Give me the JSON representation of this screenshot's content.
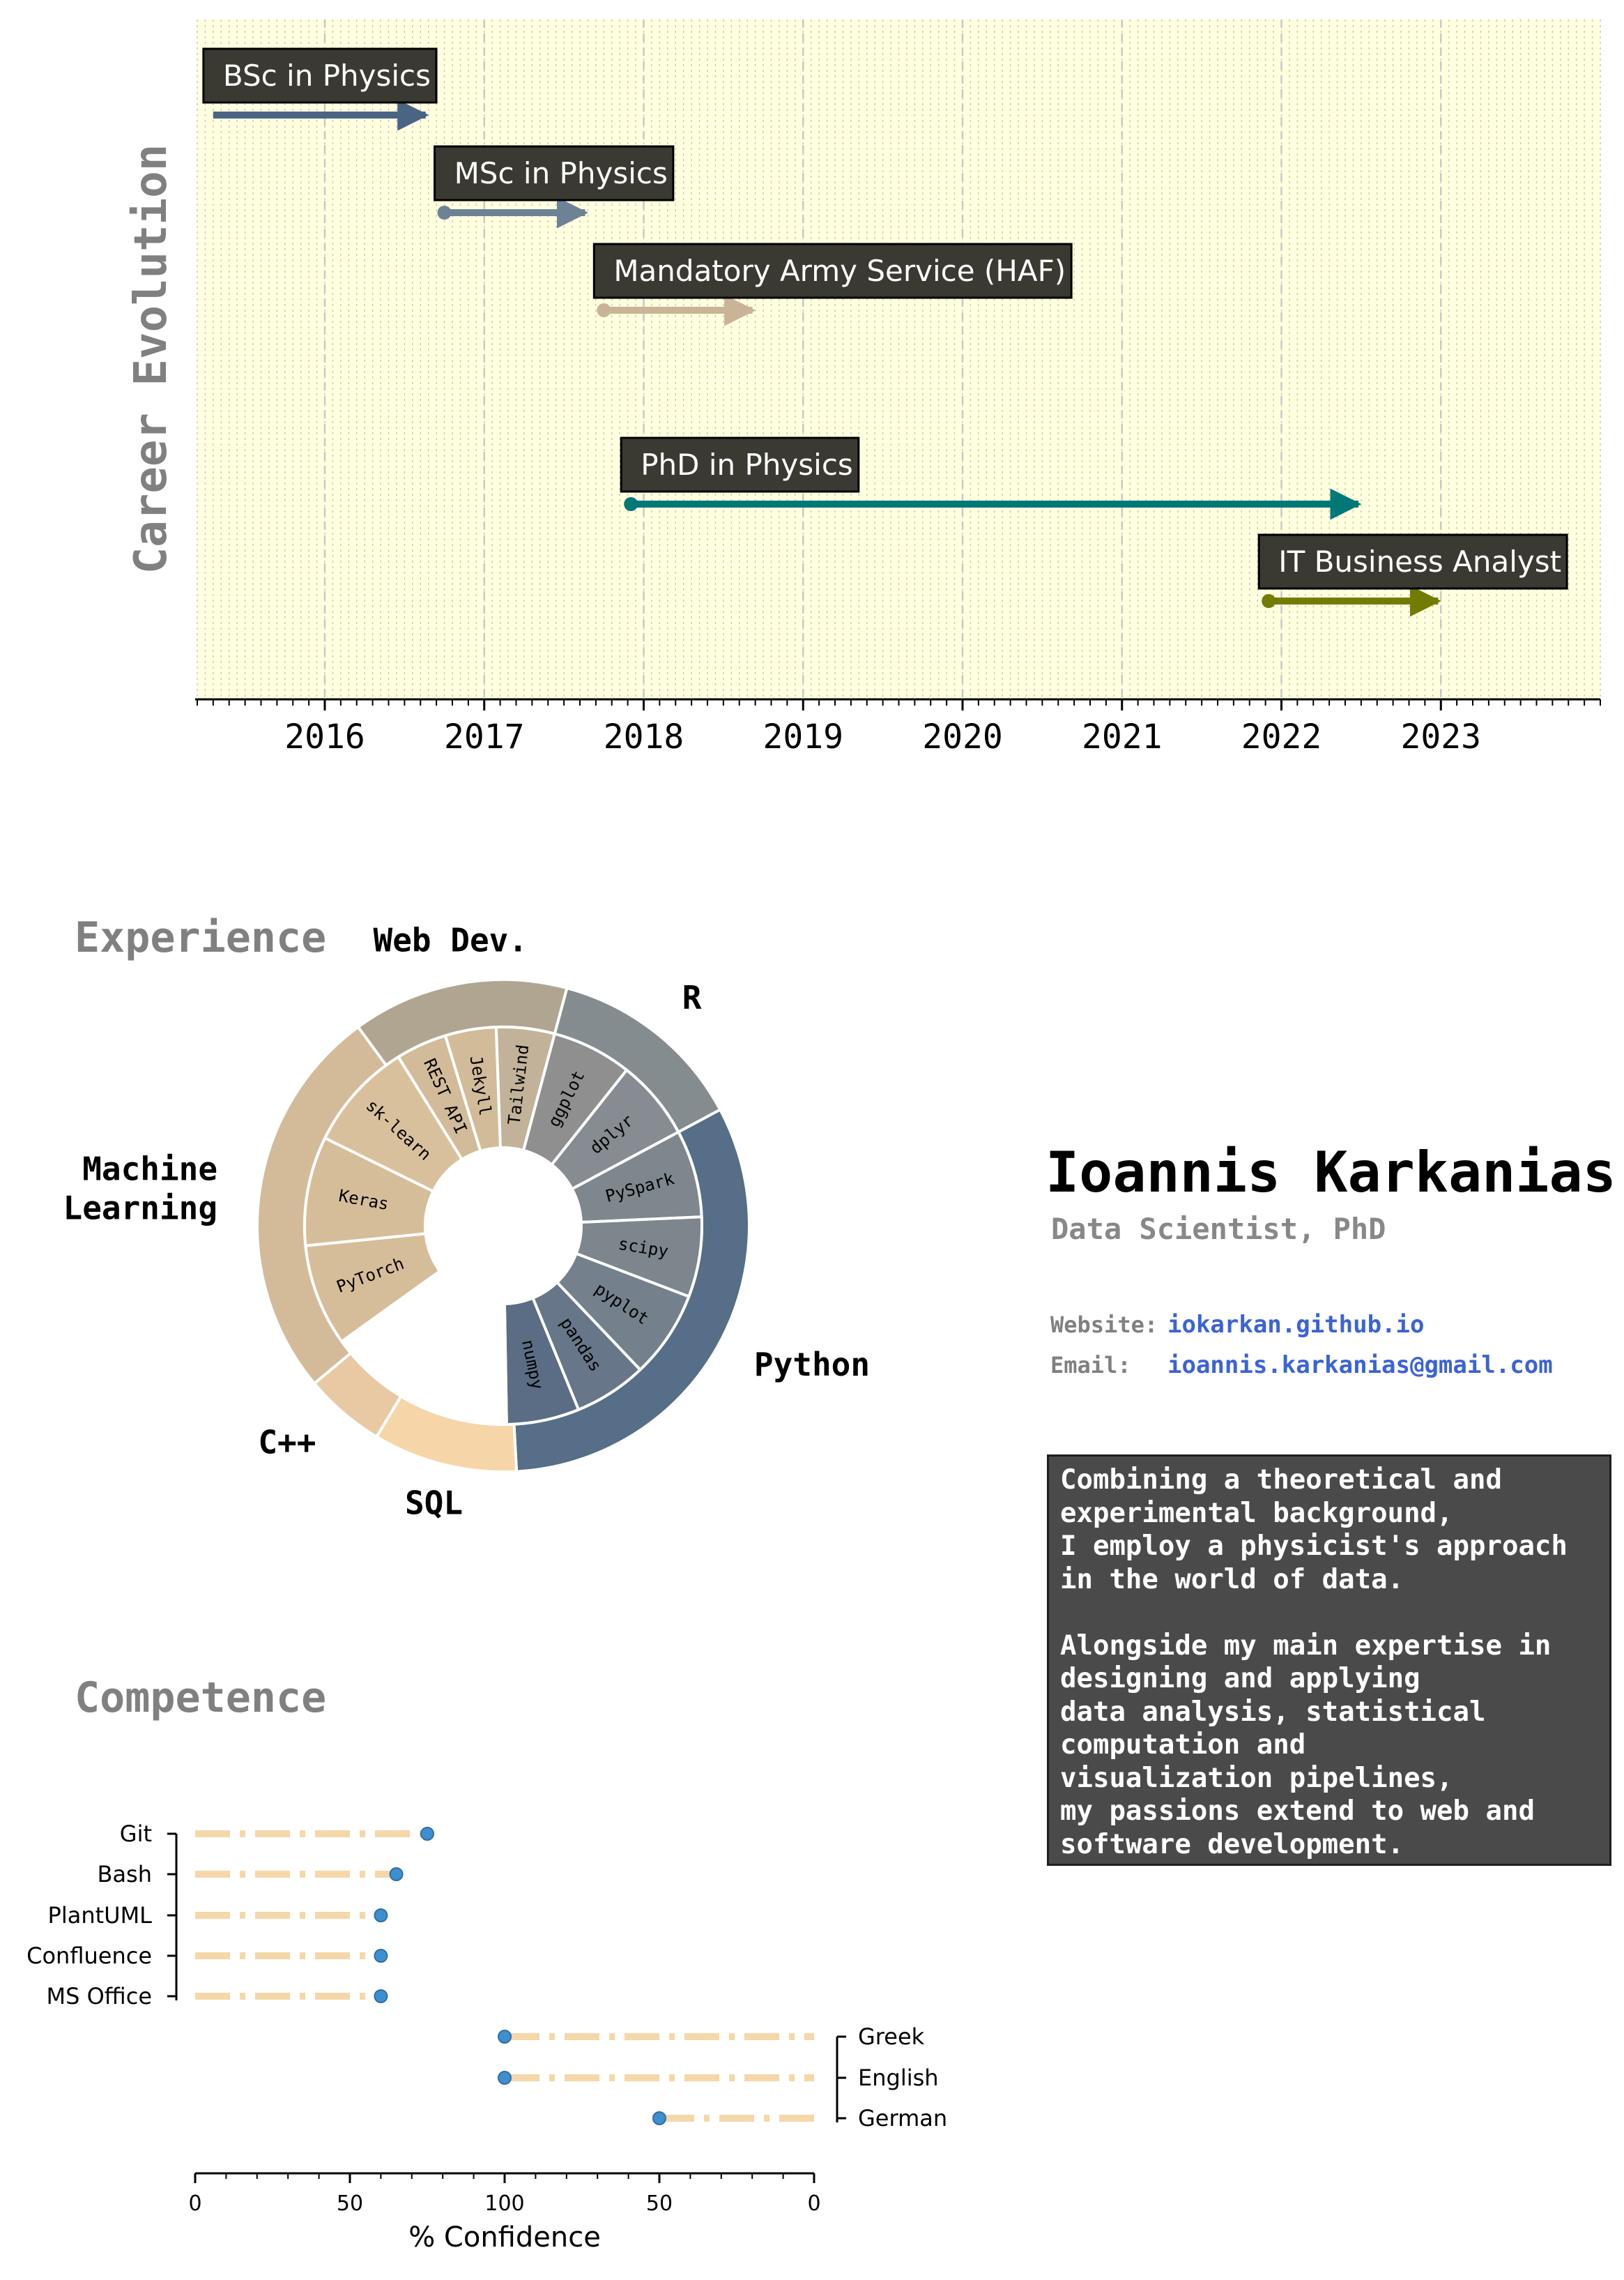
{
  "timeline": {
    "ylabel": "Career Evolution",
    "xlim": [
      2015.2,
      2024.0
    ],
    "ticks": [
      "2016",
      "2017",
      "2018",
      "2019",
      "2020",
      "2021",
      "2022",
      "2023"
    ],
    "events": [
      {
        "label": "BSc in Physics",
        "start": 2015.3,
        "end": 2016.65,
        "color": "#4a6483"
      },
      {
        "label": "MSc in Physics",
        "start": 2016.75,
        "end": 2017.65,
        "color": "#6e8296"
      },
      {
        "label": "Mandatory Army Service (HAF)",
        "start": 2017.75,
        "end": 2018.7,
        "color": "#c9b497"
      },
      {
        "label": "PhD in Physics",
        "start": 2017.92,
        "end": 2022.5,
        "color": "#007878"
      },
      {
        "label": "IT Business Analyst",
        "start": 2021.92,
        "end": 2023.0,
        "color": "#727c00"
      }
    ],
    "colors": {
      "background": "#ffffe0",
      "label_box": "#3a3a32"
    }
  },
  "experience": {
    "title": "Experience",
    "chart_data": {
      "type": "pie",
      "outer": [
        {
          "label": "R",
          "value": 11,
          "color": "#848c8f"
        },
        {
          "label": "Python",
          "value": 27,
          "color": "#566e87"
        },
        {
          "label": "SQL",
          "value": 8,
          "color": "#f6d6a9"
        },
        {
          "label": "C++",
          "value": 4.5,
          "color": "#e8c9a3"
        },
        {
          "label": "Machine\nLearning",
          "value": 22,
          "color": "#d3bb9a"
        },
        {
          "label": "Web Dev.",
          "value": 12,
          "color": "#b0a591"
        }
      ],
      "inner": [
        {
          "label": "ggplot",
          "value": 5.5,
          "color": "#8f8f8f"
        },
        {
          "label": "dplyr",
          "value": 5.5,
          "color": "#868c91"
        },
        {
          "label": "PySpark",
          "value": 6,
          "color": "#7f878e"
        },
        {
          "label": "scipy",
          "value": 5.5,
          "color": "#7d868d"
        },
        {
          "label": "pyplot",
          "value": 6,
          "color": "#74808b"
        },
        {
          "label": "pandas",
          "value": 5,
          "color": "#677688"
        },
        {
          "label": "numpy",
          "value": 5,
          "color": "#5b6d84"
        },
        {
          "label": "",
          "value": 13,
          "color": "#ffffff"
        },
        {
          "label": "PyTorch",
          "value": 7,
          "color": "#d6bd99"
        },
        {
          "label": "Keras",
          "value": 7.5,
          "color": "#d6bd99"
        },
        {
          "label": "sk-learn",
          "value": 7.5,
          "color": "#d9c09d"
        },
        {
          "label": "REST API",
          "value": 3.5,
          "color": "#d2bb99"
        },
        {
          "label": "Jekyll",
          "value": 3.5,
          "color": "#d2bb99"
        },
        {
          "label": "Tailwind",
          "value": 4,
          "color": "#c2b29a"
        }
      ]
    }
  },
  "profile": {
    "name": "Ioannis Karkanias",
    "role": "Data Scientist, PhD",
    "website_label": "Website:",
    "website": "iokarkan.github.io",
    "email_label": "Email:",
    "email": "ioannis.karkanias@gmail.com",
    "summary": "Combining a theoretical and\nexperimental background,\nI employ a physicist's approach\nin the world of data.\n\nAlongside my main expertise in\ndesigning and applying\ndata analysis, statistical\ncomputation and\nvisualization pipelines,\nmy passions extend to web and\nsoftware development."
  },
  "competence": {
    "title": "Competence",
    "chart_data": {
      "type": "scatter",
      "xlabel": "% Confidence",
      "tools": {
        "categories": [
          "Git",
          "Bash",
          "PlantUML",
          "Confluence",
          "MS Office"
        ],
        "values": [
          75,
          65,
          60,
          60,
          60
        ]
      },
      "languages": {
        "categories": [
          "Greek",
          "English",
          "German"
        ],
        "values": [
          100,
          100,
          50
        ]
      },
      "ticks": [
        "0",
        "50",
        "100",
        "50",
        "0"
      ],
      "colors": {
        "point": "#3e8fd0",
        "line": "#f5d7a8"
      }
    }
  }
}
